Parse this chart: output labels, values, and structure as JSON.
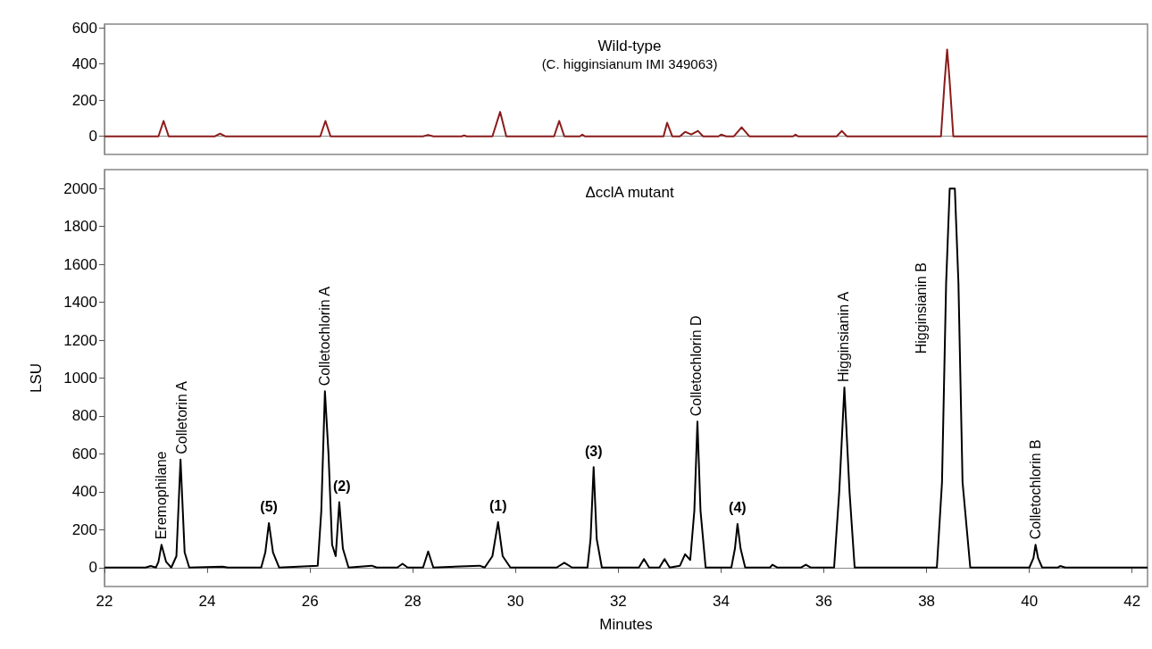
{
  "chart_data": [
    {
      "type": "line",
      "title": "Wild-type",
      "subtitle": "(C. higginsianum IMI 349063)",
      "xlim": [
        22,
        42.3
      ],
      "ylim": [
        -100,
        620
      ],
      "yticks": [
        0,
        200,
        400,
        600
      ],
      "tick_labels": "y",
      "series": [
        {
          "color": "#8b1c1c",
          "x": [
            22,
            23.05,
            23.15,
            23.25,
            24.15,
            24.25,
            24.35,
            26.2,
            26.3,
            26.4,
            28.2,
            28.3,
            28.4,
            28.95,
            29.0,
            29.05,
            29.55,
            29.7,
            29.82,
            30.75,
            30.85,
            30.95,
            31.25,
            31.3,
            31.35,
            32.88,
            32.95,
            33.05,
            33.2,
            33.3,
            33.42,
            33.55,
            33.65,
            33.95,
            34.0,
            34.1,
            34.25,
            34.4,
            34.55,
            35.4,
            35.45,
            35.5,
            36.25,
            36.35,
            36.45,
            38.28,
            38.35,
            38.4,
            38.45,
            38.52,
            42.3
          ],
          "values": [
            0,
            0,
            85,
            0,
            0,
            15,
            0,
            0,
            85,
            0,
            0,
            8,
            0,
            0,
            5,
            0,
            0,
            135,
            0,
            0,
            85,
            0,
            0,
            10,
            0,
            0,
            75,
            0,
            0,
            25,
            10,
            30,
            0,
            0,
            10,
            0,
            0,
            50,
            0,
            0,
            10,
            0,
            0,
            30,
            0,
            0,
            300,
            480,
            300,
            0,
            0
          ]
        }
      ]
    },
    {
      "type": "line",
      "title": "ΔcclA mutant",
      "xlabel": "Minutes",
      "ylabel": "LSU",
      "xlim": [
        22,
        42.3
      ],
      "xticks": [
        22,
        24,
        26,
        28,
        30,
        32,
        34,
        36,
        38,
        40,
        42
      ],
      "ylim": [
        -100,
        2100
      ],
      "yticks": [
        0,
        200,
        400,
        600,
        800,
        1000,
        1200,
        1400,
        1600,
        1800,
        2000
      ],
      "series": [
        {
          "color": "#000000",
          "x": [
            22,
            22.8,
            22.9,
            23.0,
            23.05,
            23.11,
            23.2,
            23.3,
            23.4,
            23.48,
            23.56,
            23.65,
            24.3,
            24.4,
            25.05,
            25.13,
            25.2,
            25.28,
            25.4,
            26.15,
            26.22,
            26.29,
            26.36,
            26.43,
            26.5,
            26.57,
            26.64,
            26.75,
            27.2,
            27.3,
            27.7,
            27.8,
            27.9,
            28.2,
            28.3,
            28.4,
            29.3,
            29.4,
            29.55,
            29.66,
            29.75,
            29.9,
            30.8,
            30.95,
            31.1,
            31.4,
            31.46,
            31.52,
            31.58,
            31.68,
            32.4,
            32.5,
            32.6,
            32.8,
            32.9,
            33.0,
            33.2,
            33.3,
            33.4,
            33.48,
            33.54,
            33.6,
            33.7,
            34.2,
            34.27,
            34.32,
            34.38,
            34.47,
            34.95,
            35.0,
            35.1,
            35.55,
            35.65,
            35.75,
            36.2,
            36.3,
            36.4,
            36.5,
            36.6,
            38.2,
            38.3,
            38.38,
            38.45,
            38.55,
            38.62,
            38.7,
            38.85,
            40.0,
            40.08,
            40.12,
            40.17,
            40.25,
            40.55,
            40.6,
            40.7,
            42.3
          ],
          "values": [
            0,
            0,
            8,
            0,
            30,
            120,
            30,
            0,
            60,
            570,
            80,
            0,
            5,
            0,
            0,
            80,
            235,
            80,
            0,
            10,
            300,
            930,
            600,
            120,
            60,
            345,
            100,
            0,
            10,
            0,
            0,
            20,
            0,
            0,
            85,
            0,
            10,
            0,
            60,
            240,
            60,
            0,
            0,
            25,
            0,
            0,
            150,
            530,
            150,
            0,
            0,
            45,
            0,
            0,
            45,
            0,
            10,
            70,
            40,
            300,
            770,
            300,
            0,
            0,
            100,
            230,
            100,
            0,
            0,
            15,
            0,
            0,
            15,
            0,
            0,
            400,
            950,
            400,
            0,
            0,
            450,
            1500,
            2000,
            2000,
            1500,
            450,
            0,
            0,
            50,
            120,
            50,
            0,
            0,
            8,
            0,
            0
          ]
        }
      ],
      "annotations": [
        {
          "text": "Eremophilane",
          "x": 23.11,
          "y": 120
        },
        {
          "text": "Colletorin A",
          "x": 23.5,
          "y": 570
        },
        {
          "text": "(5)",
          "x": 25.2,
          "y": 235
        },
        {
          "text": "Colletochlorin A",
          "x": 26.29,
          "y": 930
        },
        {
          "text": "(2)",
          "x": 26.62,
          "y": 345
        },
        {
          "text": "(1)",
          "x": 29.66,
          "y": 240
        },
        {
          "text": "(3)",
          "x": 31.52,
          "y": 530
        },
        {
          "text": "Colletochlorin D",
          "x": 33.52,
          "y": 770
        },
        {
          "text": "(4)",
          "x": 34.32,
          "y": 230
        },
        {
          "text": "Higginsianin A",
          "x": 36.38,
          "y": 950
        },
        {
          "text": "Higginsianin B",
          "x": 38.35,
          "y": 1100
        },
        {
          "text": "Colletochlorin B",
          "x": 40.12,
          "y": 120
        }
      ]
    }
  ]
}
